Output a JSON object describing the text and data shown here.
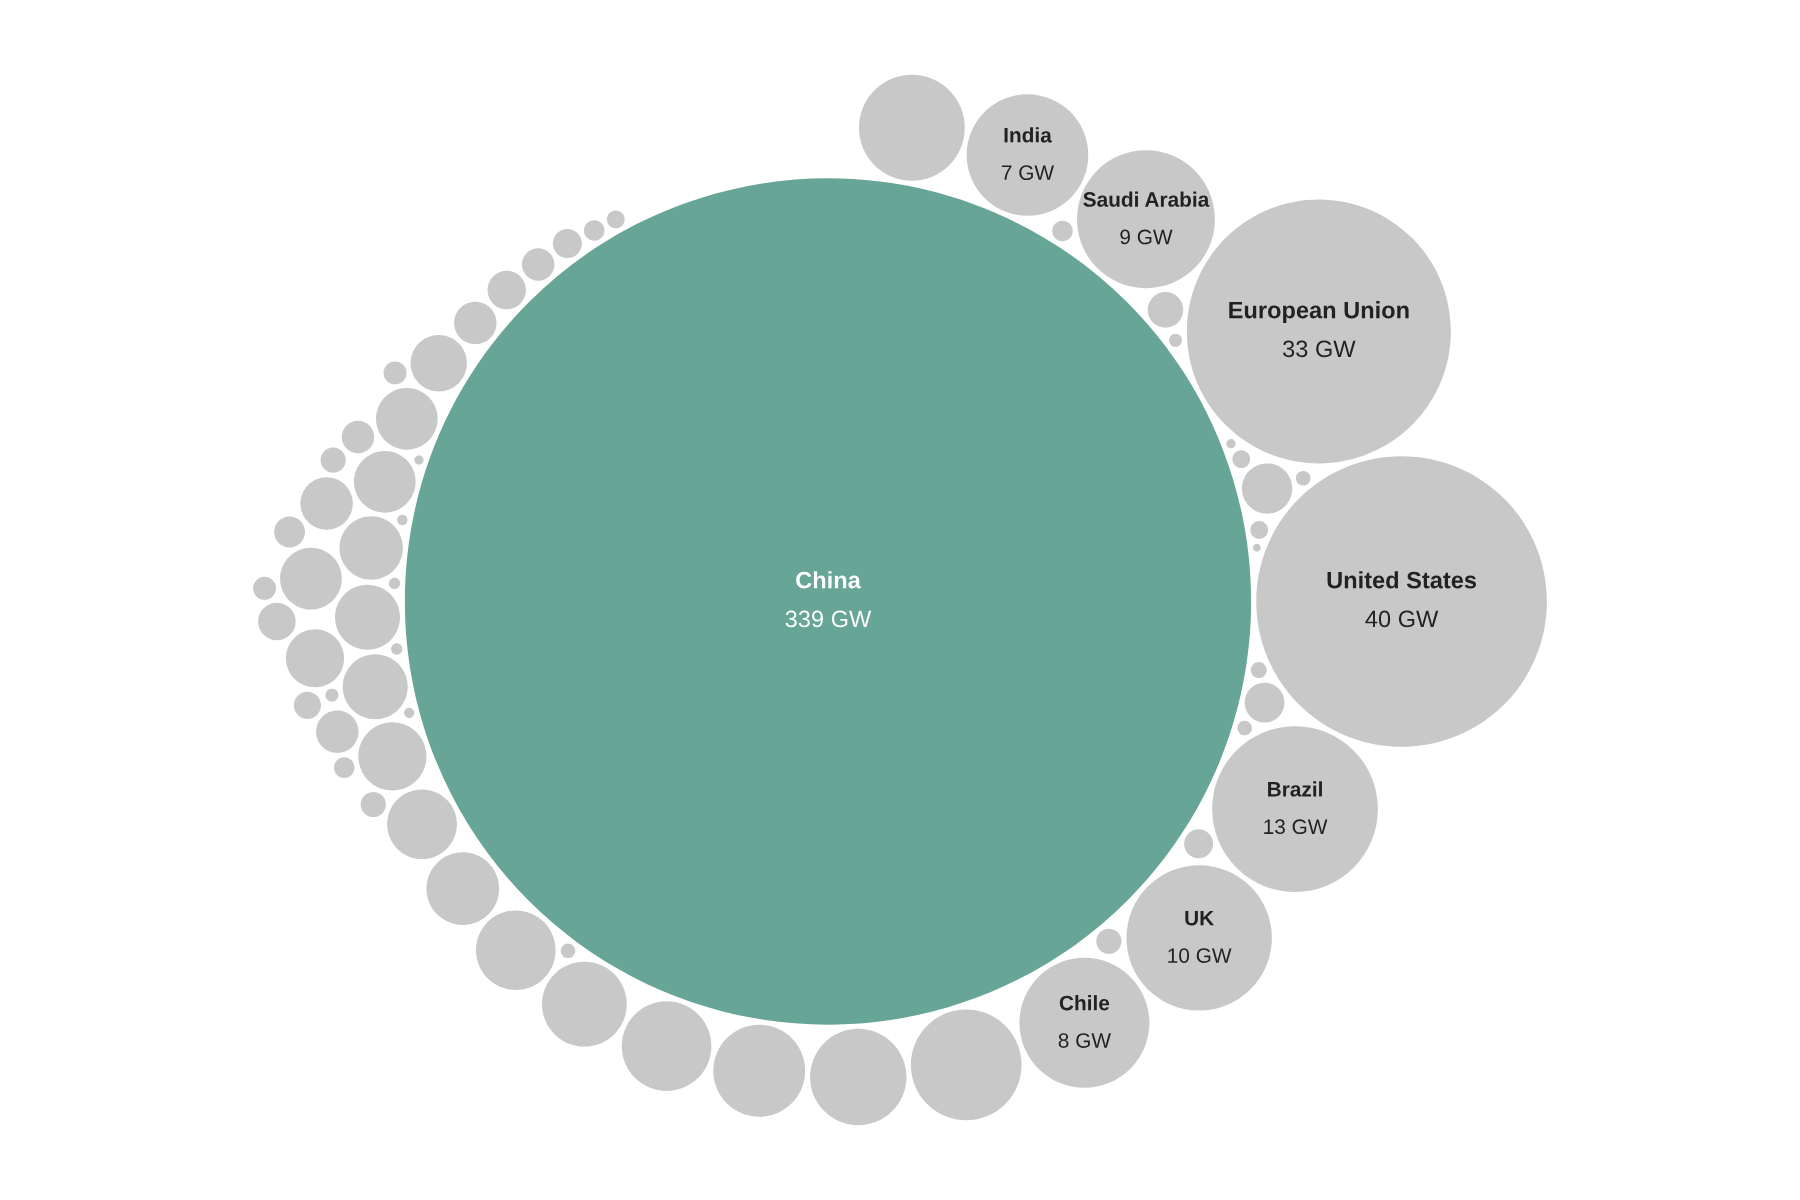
{
  "chart_data": {
    "type": "other",
    "categories": [
      "China",
      "United States",
      "European Union",
      "Brazil",
      "UK",
      "Saudi Arabia",
      "Chile",
      "India"
    ],
    "values": [
      339,
      40,
      33,
      13,
      10,
      9,
      8,
      7
    ],
    "value_labels": [
      "339 GW",
      "40 GW",
      "33 GW",
      "13 GW",
      "10 GW",
      "9 GW",
      "8 GW",
      "7 GW"
    ],
    "colors": [
      "#67a596",
      "#c8c8c8",
      "#c8c8c8",
      "#c8c8c8",
      "#c8c8c8",
      "#c8c8c8",
      "#c8c8c8",
      "#c8c8c8"
    ]
  }
}
